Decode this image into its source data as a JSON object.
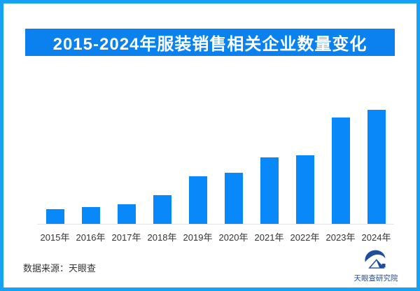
{
  "title": "2015-2024年服装销售相关企业数量变化",
  "colors": {
    "frame_border": "#15A1F4",
    "title_banner_bg": "#0B80EF",
    "title_text": "#FFFFFF",
    "bar": "#0988F9",
    "axis_line": "#E3E3E3",
    "axis_label_text": "#333333",
    "brand_blue": "#1D4F9E"
  },
  "footer": {
    "source_label": "数据来源：天眼查",
    "brand_name": "天眼查研究院"
  },
  "chart_data": {
    "type": "bar",
    "title": "2015-2024年服装销售相关企业数量变化",
    "categories": [
      "2015年",
      "2016年",
      "2017年",
      "2018年",
      "2019年",
      "2020年",
      "2021年",
      "2022年",
      "2023年",
      "2024年"
    ],
    "values": [
      13,
      15,
      17,
      25,
      42,
      45,
      58,
      60,
      93,
      100
    ],
    "value_note": "no numeric axis shown; values are relative bar heights with 2024 = 100",
    "xlabel": "",
    "ylabel": "",
    "ylim": [
      0,
      104
    ],
    "grid": false,
    "legend": false,
    "bar_color": "#0988F9"
  }
}
